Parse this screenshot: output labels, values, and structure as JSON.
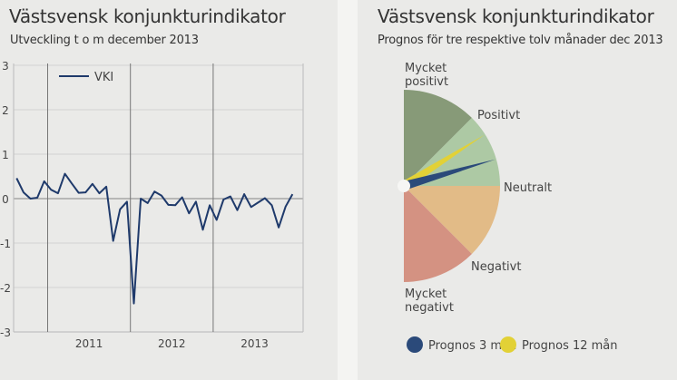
{
  "chart_data": [
    {
      "type": "line",
      "title": "Västsvensk konjunkturindikator",
      "subtitle": "Utveckling t o m december 2013",
      "xlabel": "",
      "ylabel": "",
      "ylim": [
        -3,
        3
      ],
      "yticks": [
        "3",
        "2",
        "1",
        "0",
        "-1",
        "-2",
        "-3"
      ],
      "xtick_labels": [
        "2011",
        "2012",
        "2013"
      ],
      "grid": true,
      "legend_placement": "top-left",
      "x_start": "2010-08",
      "x_end": "2013-12",
      "series": [
        {
          "name": "VKI",
          "color": "#1f3a6b",
          "values": [
            0.46,
            0.14,
            0.0,
            0.02,
            0.39,
            0.2,
            0.12,
            0.56,
            0.34,
            0.13,
            0.14,
            0.33,
            0.12,
            0.27,
            -0.95,
            -0.24,
            -0.07,
            -2.36,
            0.0,
            -0.1,
            0.16,
            0.07,
            -0.14,
            -0.15,
            0.03,
            -0.33,
            -0.07,
            -0.7,
            -0.15,
            -0.48,
            -0.02,
            0.05,
            -0.26,
            0.1,
            -0.19,
            -0.09,
            0.01,
            -0.15,
            -0.65,
            -0.18,
            0.1
          ]
        }
      ]
    },
    {
      "type": "gauge",
      "title": "Västsvensk konjunkturindikator",
      "subtitle": "Prognos för tre respektive tolv månader dec 2013",
      "segments": [
        {
          "label": "Mycket positivt",
          "color": "#879a78"
        },
        {
          "label": "Positivt",
          "color": "#adc9a4"
        },
        {
          "label": "Neutralt",
          "color": null
        },
        {
          "label": "Negativt",
          "color": "#e2bb87"
        },
        {
          "label": "Mycket negativt",
          "color": "#d49282"
        }
      ],
      "needle_scale": [
        -1,
        1
      ],
      "needles": [
        {
          "name": "Prognos 3 mån",
          "color": "#2b4a7a",
          "value": 0.18
        },
        {
          "name": "Prognos 12 mån",
          "color": "#e2d136",
          "value": 0.36
        }
      ],
      "legend_placement": "bottom"
    }
  ]
}
